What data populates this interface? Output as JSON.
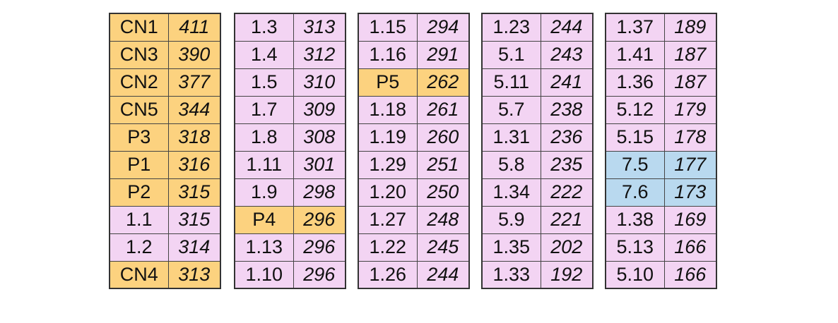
{
  "colors": {
    "orange": "#fcd27f",
    "pink": "#f3d4f3",
    "blue": "#b9d9ef"
  },
  "columns": [
    [
      {
        "label": "CN1",
        "value": "411",
        "color": "orange"
      },
      {
        "label": "CN3",
        "value": "390",
        "color": "orange"
      },
      {
        "label": "CN2",
        "value": "377",
        "color": "orange"
      },
      {
        "label": "CN5",
        "value": "344",
        "color": "orange"
      },
      {
        "label": "P3",
        "value": "318",
        "color": "orange"
      },
      {
        "label": "P1",
        "value": "316",
        "color": "orange"
      },
      {
        "label": "P2",
        "value": "315",
        "color": "orange"
      },
      {
        "label": "1.1",
        "value": "315",
        "color": "pink"
      },
      {
        "label": "1.2",
        "value": "314",
        "color": "pink"
      },
      {
        "label": "CN4",
        "value": "313",
        "color": "orange"
      }
    ],
    [
      {
        "label": "1.3",
        "value": "313",
        "color": "pink"
      },
      {
        "label": "1.4",
        "value": "312",
        "color": "pink"
      },
      {
        "label": "1.5",
        "value": "310",
        "color": "pink"
      },
      {
        "label": "1.7",
        "value": "309",
        "color": "pink"
      },
      {
        "label": "1.8",
        "value": "308",
        "color": "pink"
      },
      {
        "label": "1.11",
        "value": "301",
        "color": "pink"
      },
      {
        "label": "1.9",
        "value": "298",
        "color": "pink"
      },
      {
        "label": "P4",
        "value": "296",
        "color": "orange"
      },
      {
        "label": "1.13",
        "value": "296",
        "color": "pink"
      },
      {
        "label": "1.10",
        "value": "296",
        "color": "pink"
      }
    ],
    [
      {
        "label": "1.15",
        "value": "294",
        "color": "pink"
      },
      {
        "label": "1.16",
        "value": "291",
        "color": "pink"
      },
      {
        "label": "P5",
        "value": "262",
        "color": "orange"
      },
      {
        "label": "1.18",
        "value": "261",
        "color": "pink"
      },
      {
        "label": "1.19",
        "value": "260",
        "color": "pink"
      },
      {
        "label": "1.29",
        "value": "251",
        "color": "pink"
      },
      {
        "label": "1.20",
        "value": "250",
        "color": "pink"
      },
      {
        "label": "1.27",
        "value": "248",
        "color": "pink"
      },
      {
        "label": "1.22",
        "value": "245",
        "color": "pink"
      },
      {
        "label": "1.26",
        "value": "244",
        "color": "pink"
      }
    ],
    [
      {
        "label": "1.23",
        "value": "244",
        "color": "pink"
      },
      {
        "label": "5.1",
        "value": "243",
        "color": "pink"
      },
      {
        "label": "5.11",
        "value": "241",
        "color": "pink"
      },
      {
        "label": "5.7",
        "value": "238",
        "color": "pink"
      },
      {
        "label": "1.31",
        "value": "236",
        "color": "pink"
      },
      {
        "label": "5.8",
        "value": "235",
        "color": "pink"
      },
      {
        "label": "1.34",
        "value": "222",
        "color": "pink"
      },
      {
        "label": "5.9",
        "value": "221",
        "color": "pink"
      },
      {
        "label": "1.35",
        "value": "202",
        "color": "pink"
      },
      {
        "label": "1.33",
        "value": "192",
        "color": "pink"
      }
    ],
    [
      {
        "label": "1.37",
        "value": "189",
        "color": "pink"
      },
      {
        "label": "1.41",
        "value": "187",
        "color": "pink"
      },
      {
        "label": "1.36",
        "value": "187",
        "color": "pink"
      },
      {
        "label": "5.12",
        "value": "179",
        "color": "pink"
      },
      {
        "label": "5.15",
        "value": "178",
        "color": "pink"
      },
      {
        "label": "7.5",
        "value": "177",
        "color": "blue"
      },
      {
        "label": "7.6",
        "value": "173",
        "color": "blue"
      },
      {
        "label": "1.38",
        "value": "169",
        "color": "pink"
      },
      {
        "label": "5.13",
        "value": "166",
        "color": "pink"
      },
      {
        "label": "5.10",
        "value": "166",
        "color": "pink"
      }
    ]
  ]
}
